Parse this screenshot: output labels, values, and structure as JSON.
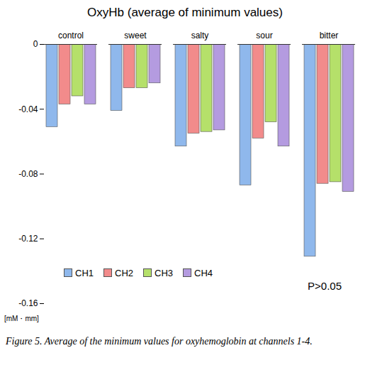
{
  "chart_data": {
    "type": "bar",
    "title": "OxyHb (average of minimum values)",
    "categories": [
      "control",
      "sweet",
      "salty",
      "sour",
      "bitter"
    ],
    "series": [
      {
        "name": "CH1",
        "color": "#8fb8ec",
        "values": [
          -0.051,
          -0.041,
          -0.063,
          -0.087,
          -0.131
        ]
      },
      {
        "name": "CH2",
        "color": "#f28b8b",
        "values": [
          -0.037,
          -0.027,
          -0.055,
          -0.058,
          -0.086
        ]
      },
      {
        "name": "CH3",
        "color": "#b5e06a",
        "values": [
          -0.032,
          -0.027,
          -0.054,
          -0.048,
          -0.085
        ]
      },
      {
        "name": "CH4",
        "color": "#b49be0",
        "values": [
          -0.037,
          -0.024,
          -0.053,
          -0.063,
          -0.091
        ]
      }
    ],
    "ylim": [
      -0.16,
      0
    ],
    "yticks": [
      0,
      -0.04,
      -0.08,
      -0.12,
      -0.16
    ],
    "y_label": "[mM・mm]",
    "annotation": "P>0.05",
    "legend": "bottom-left",
    "caption": "Figure 5. Average of the minimum values for oxyhemoglobin at channels 1-4."
  }
}
